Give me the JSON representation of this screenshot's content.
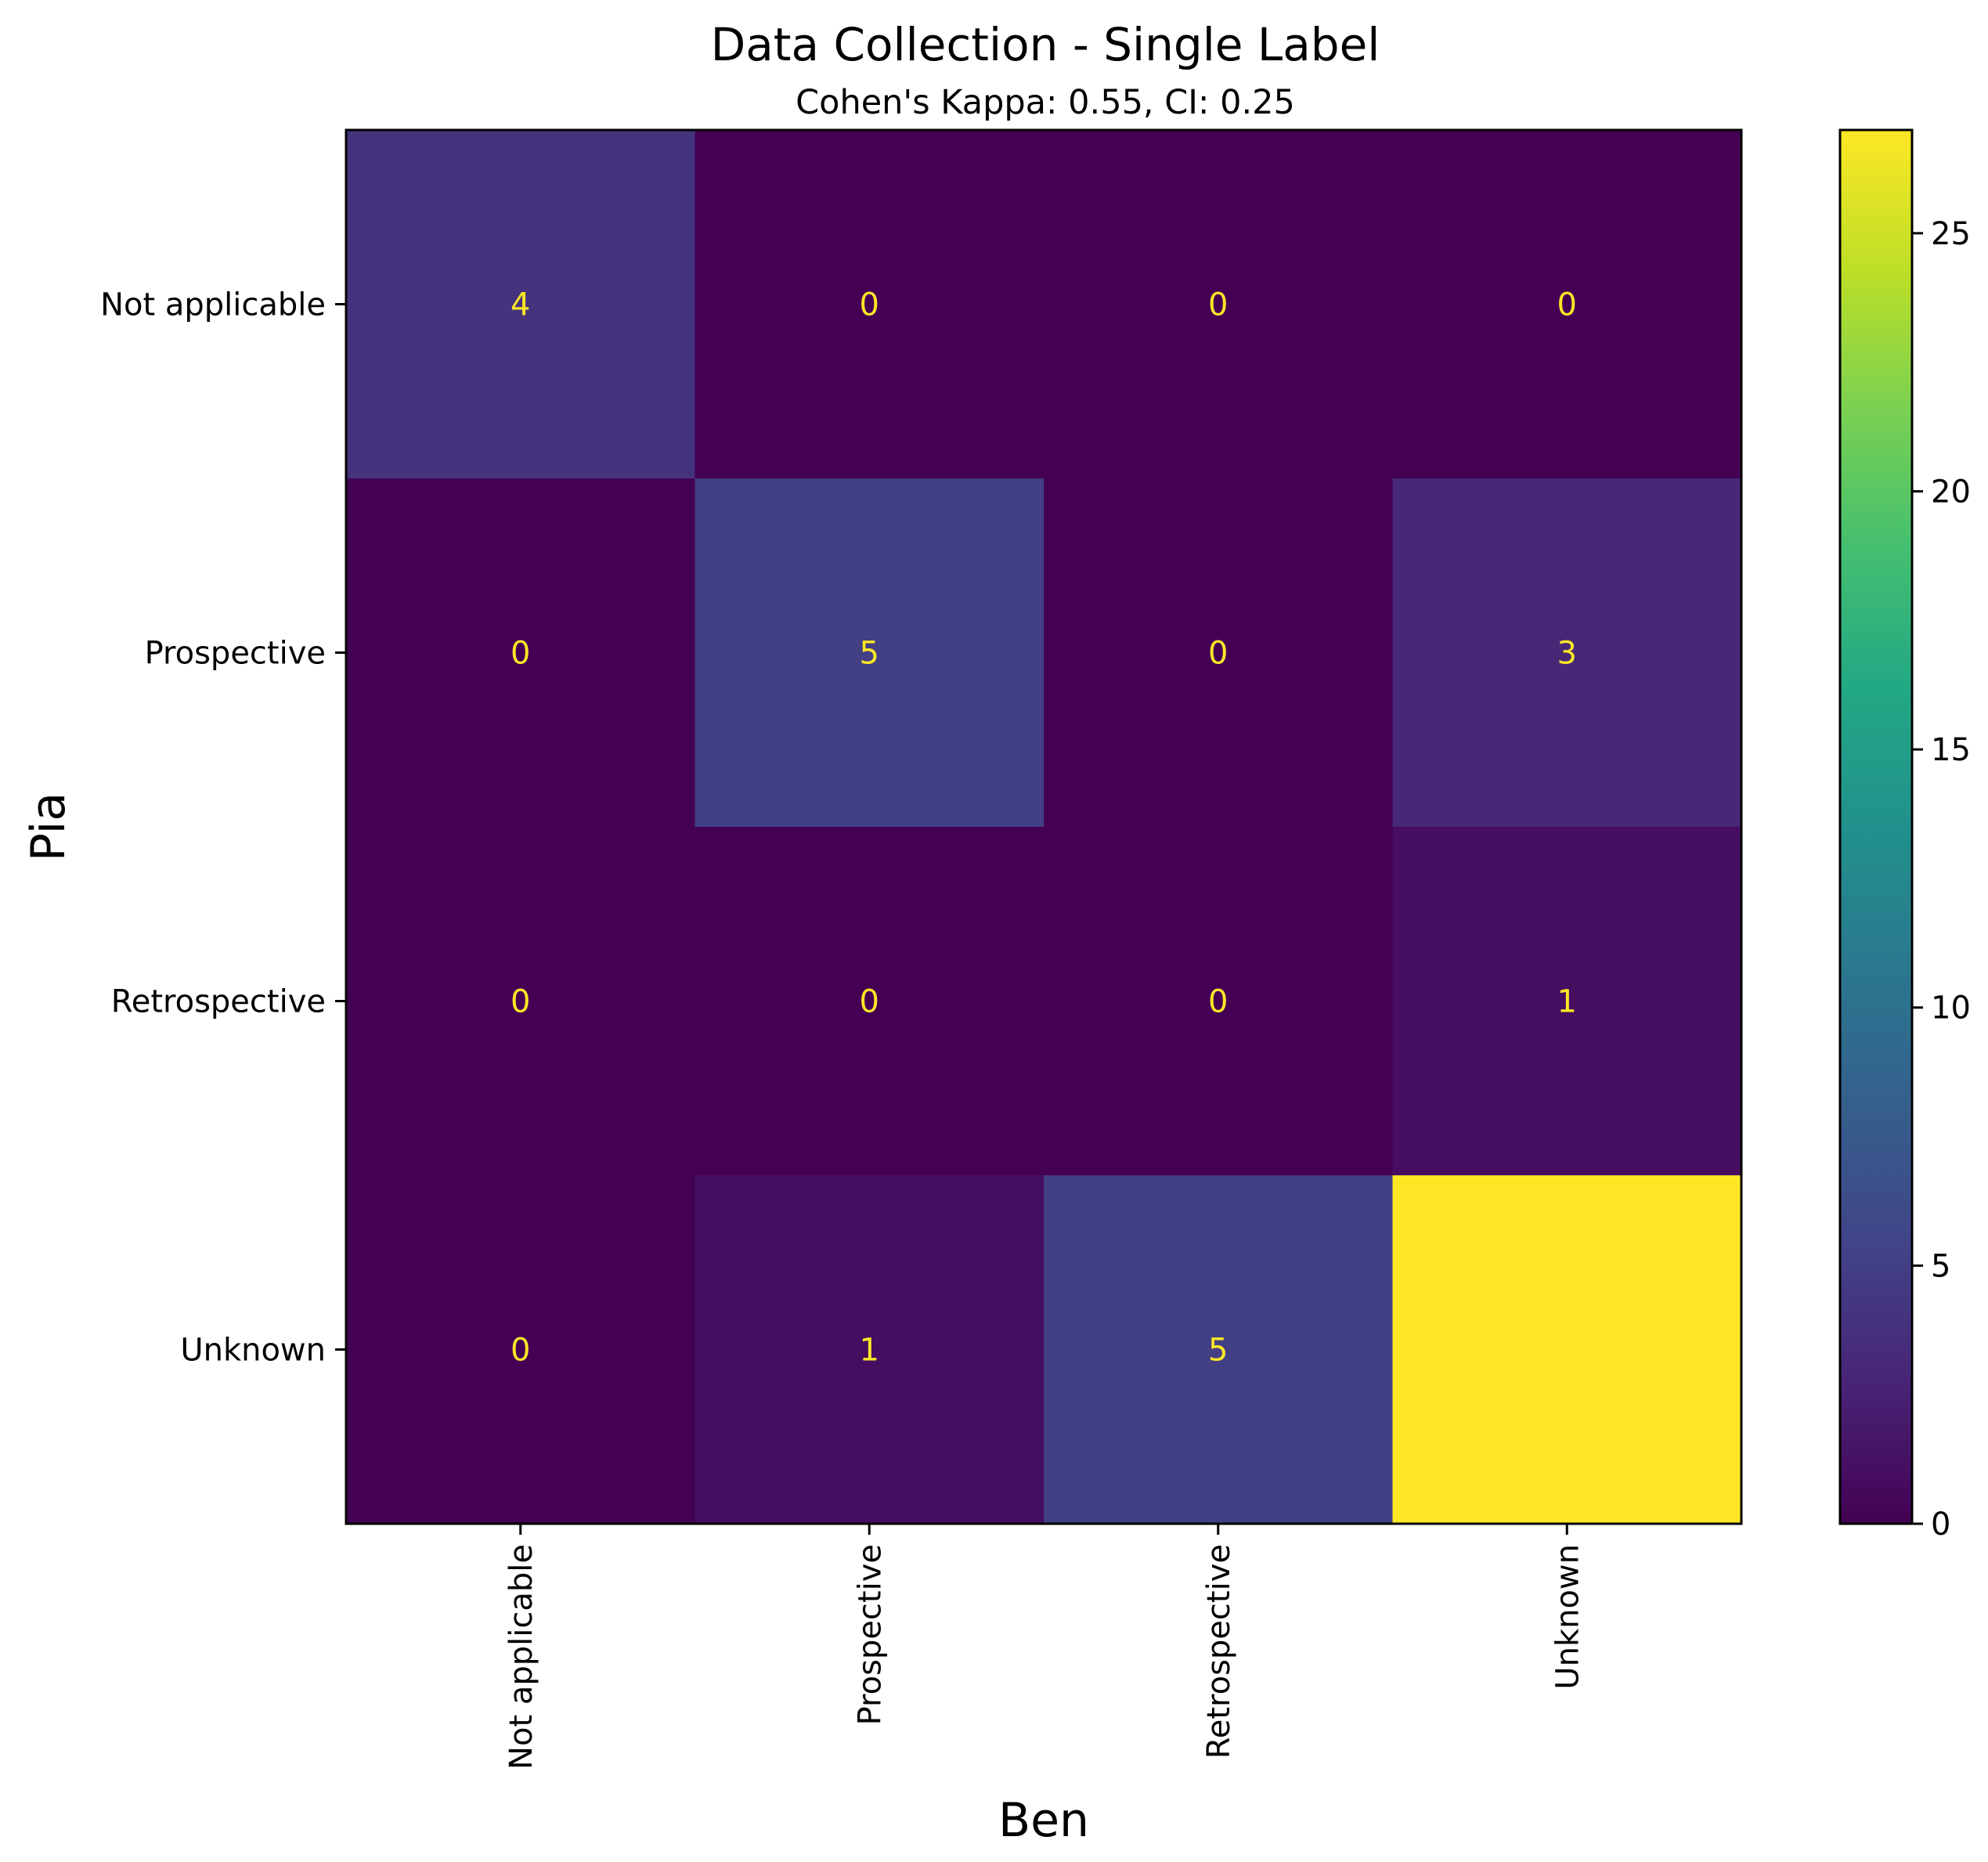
{
  "chart_data": {
    "type": "heatmap",
    "title": "Data Collection - Single Label",
    "subtitle": "Cohen's Kappa: 0.55, CI: 0.25",
    "xlabel": "Ben",
    "ylabel": "Pia",
    "x_categories": [
      "Not applicable",
      "Prospective",
      "Retrospective",
      "Unknown"
    ],
    "y_categories": [
      "Not applicable",
      "Prospective",
      "Retrospective",
      "Unknown"
    ],
    "values": [
      [
        4,
        0,
        0,
        0
      ],
      [
        0,
        5,
        0,
        3
      ],
      [
        0,
        0,
        0,
        1
      ],
      [
        0,
        1,
        5,
        27
      ]
    ],
    "colormap": "viridis",
    "colorbar": {
      "range": [
        0,
        27
      ],
      "ticks": [
        0,
        5,
        10,
        15,
        20,
        25
      ],
      "tick_labels": [
        "0",
        "5",
        "10",
        "15",
        "20",
        "25"
      ]
    },
    "annotation_color": "#fde725",
    "grid": false
  }
}
